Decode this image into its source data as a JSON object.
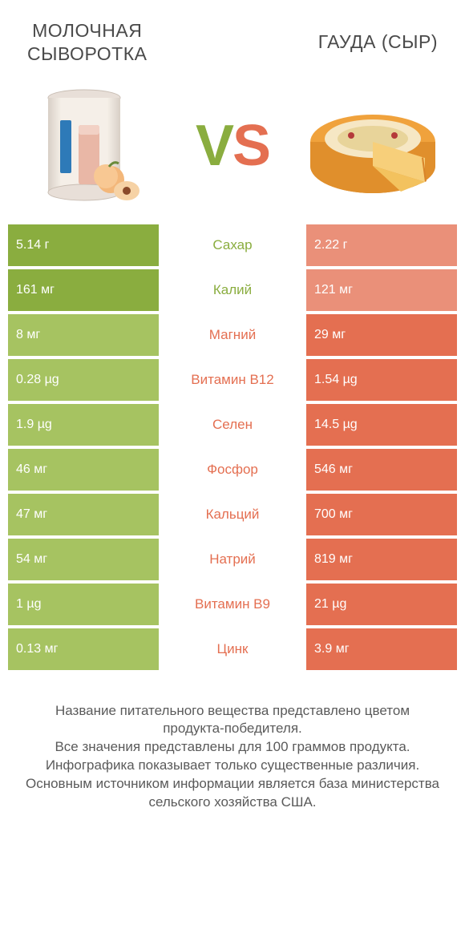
{
  "header": {
    "left_title": "МОЛОЧНАЯ\nСЫВОРОТКА",
    "right_title": "ГАУДА (СЫР)"
  },
  "vs": {
    "label": "VS",
    "color_left": "#8aad3f",
    "color_right": "#e46f51"
  },
  "colors": {
    "green_strong": "#8aad3f",
    "green_muted": "#a6c361",
    "orange_strong": "#e46f51",
    "orange_muted": "#ea9079",
    "row_text": "#ffffff"
  },
  "rows": [
    {
      "left": "5.14 г",
      "mid": "Сахар",
      "right": "2.22 г",
      "winner": "left"
    },
    {
      "left": "161 мг",
      "mid": "Калий",
      "right": "121 мг",
      "winner": "left"
    },
    {
      "left": "8 мг",
      "mid": "Магний",
      "right": "29 мг",
      "winner": "right"
    },
    {
      "left": "0.28 µg",
      "mid": "Витамин B12",
      "right": "1.54 µg",
      "winner": "right"
    },
    {
      "left": "1.9 µg",
      "mid": "Селен",
      "right": "14.5 µg",
      "winner": "right"
    },
    {
      "left": "46 мг",
      "mid": "Фосфор",
      "right": "546 мг",
      "winner": "right"
    },
    {
      "left": "47 мг",
      "mid": "Кальций",
      "right": "700 мг",
      "winner": "right"
    },
    {
      "left": "54 мг",
      "mid": "Натрий",
      "right": "819 мг",
      "winner": "right"
    },
    {
      "left": "1 µg",
      "mid": "Витамин B9",
      "right": "21 µg",
      "winner": "right"
    },
    {
      "left": "0.13 мг",
      "mid": "Цинк",
      "right": "3.9 мг",
      "winner": "right"
    }
  ],
  "footnote": "Название питательного вещества представлено цветом\nпродукта-победителя.\nВсе значения представлены для 100 граммов продукта.\nИнфографика показывает только существенные различия.\nОсновным источником информации является база министерства\nсельского хозяйства США."
}
